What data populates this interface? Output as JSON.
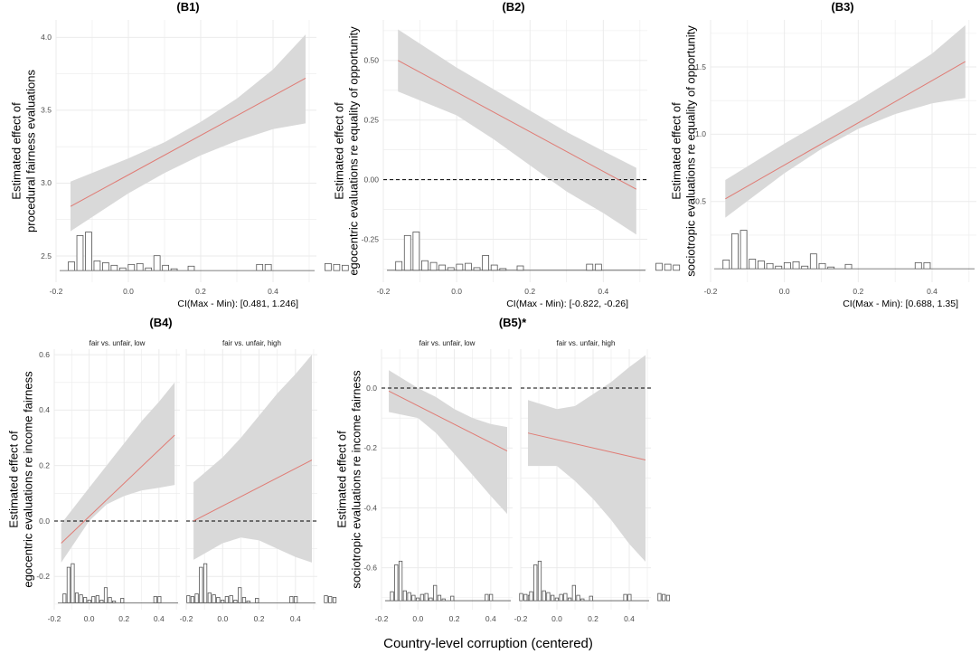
{
  "chart_data": {
    "type": "line",
    "xlabel": "Country-level corruption (centered)",
    "histogram_bins": [
      {
        "x": -0.18,
        "h": 1
      },
      {
        "x": -0.155,
        "h": 4
      },
      {
        "x": -0.13,
        "h": 4.4
      },
      {
        "x": -0.105,
        "h": 1.1
      },
      {
        "x": -0.08,
        "h": 0.9
      },
      {
        "x": -0.055,
        "h": 0.6
      },
      {
        "x": -0.03,
        "h": 0.3
      },
      {
        "x": -0.005,
        "h": 0.7
      },
      {
        "x": 0.02,
        "h": 0.8
      },
      {
        "x": 0.045,
        "h": 0.3
      },
      {
        "x": 0.07,
        "h": 1.7
      },
      {
        "x": 0.095,
        "h": 0.6
      },
      {
        "x": 0.12,
        "h": 0.2
      },
      {
        "x": 0.17,
        "h": 0.5
      },
      {
        "x": 0.37,
        "h": 0.7
      },
      {
        "x": 0.395,
        "h": 0.7
      },
      {
        "x": 0.57,
        "h": 0.8
      },
      {
        "x": 0.595,
        "h": 0.7
      },
      {
        "x": 0.62,
        "h": 0.6
      }
    ],
    "panels": [
      {
        "id": "B1",
        "title": "(B1)",
        "ylabel": [
          "Estimated effect of",
          "procedural fairness evaluations"
        ],
        "xlim": [
          -0.2,
          0.52
        ],
        "ylim": [
          2.32,
          4.12
        ],
        "xticks": [
          {
            "v": -0.2,
            "t": "-0.2"
          },
          {
            "v": 0.0,
            "t": "0.0"
          },
          {
            "v": 0.2,
            "t": "0.2"
          },
          {
            "v": 0.4,
            "t": "0.4"
          }
        ],
        "yticks": [
          {
            "v": 2.5,
            "t": "2.5"
          },
          {
            "v": 3.0,
            "t": "3.0"
          },
          {
            "v": 3.5,
            "t": "3.5"
          },
          {
            "v": 4.0,
            "t": "4.0"
          }
        ],
        "ci_text": "CI(Max - Min): [0.481, 1.246]",
        "hist_base": 2.4,
        "hist_unit": 0.06,
        "hist_xmin": -0.2,
        "hist_xmax": 0.5,
        "facets": [
          {
            "strip": "",
            "line": [
              [
                -0.16,
                2.84
              ],
              [
                0.49,
                3.72
              ]
            ],
            "band_upper": [
              [
                -0.16,
                3.01
              ],
              [
                0.0,
                3.17
              ],
              [
                0.1,
                3.28
              ],
              [
                0.2,
                3.42
              ],
              [
                0.3,
                3.58
              ],
              [
                0.4,
                3.78
              ],
              [
                0.49,
                4.02
              ]
            ],
            "band_lower": [
              [
                -0.16,
                2.67
              ],
              [
                0.0,
                2.93
              ],
              [
                0.1,
                3.07
              ],
              [
                0.2,
                3.19
              ],
              [
                0.3,
                3.29
              ],
              [
                0.4,
                3.37
              ],
              [
                0.49,
                3.41
              ]
            ]
          }
        ]
      },
      {
        "id": "B2",
        "title": "(B2)",
        "ylabel": [
          "Estimated effect of",
          "egocentric evaluations re equality of opportunity"
        ],
        "xlim": [
          -0.2,
          0.52
        ],
        "ylim": [
          -0.43,
          0.67
        ],
        "xticks": [
          {
            "v": -0.2,
            "t": "-0.2"
          },
          {
            "v": 0.0,
            "t": "0.0"
          },
          {
            "v": 0.2,
            "t": "0.2"
          },
          {
            "v": 0.4,
            "t": "0.4"
          }
        ],
        "yticks": [
          {
            "v": -0.25,
            "t": "-0.25"
          },
          {
            "v": 0.0,
            "t": "0.00"
          },
          {
            "v": 0.25,
            "t": "0.25"
          },
          {
            "v": 0.5,
            "t": "0.50"
          }
        ],
        "hline": 0.0,
        "ci_text": "CI(Max - Min): [-0.822, -0.26]",
        "hist_base": -0.38,
        "hist_unit": 0.0365,
        "hist_xmin": -0.2,
        "hist_xmax": 0.5,
        "facets": [
          {
            "strip": "",
            "line": [
              [
                -0.16,
                0.5
              ],
              [
                0.49,
                -0.04
              ]
            ],
            "band_upper": [
              [
                -0.16,
                0.63
              ],
              [
                0.0,
                0.47
              ],
              [
                0.1,
                0.38
              ],
              [
                0.2,
                0.29
              ],
              [
                0.3,
                0.2
              ],
              [
                0.4,
                0.12
              ],
              [
                0.49,
                0.05
              ]
            ],
            "band_lower": [
              [
                -0.16,
                0.37
              ],
              [
                0.0,
                0.27
              ],
              [
                0.1,
                0.17
              ],
              [
                0.2,
                0.06
              ],
              [
                0.3,
                -0.05
              ],
              [
                0.4,
                -0.14
              ],
              [
                0.49,
                -0.23
              ]
            ]
          }
        ]
      },
      {
        "id": "B3",
        "title": "(B3)",
        "ylabel": [
          "Estimated effect of",
          "sociotropic evaluations re equality of opportunity"
        ],
        "xlim": [
          -0.2,
          0.52
        ],
        "ylim": [
          -0.1,
          1.85
        ],
        "xticks": [
          {
            "v": -0.2,
            "t": "-0.2"
          },
          {
            "v": 0.0,
            "t": "0.0"
          },
          {
            "v": 0.2,
            "t": "0.2"
          },
          {
            "v": 0.4,
            "t": "0.4"
          }
        ],
        "yticks": [
          {
            "v": 0.5,
            "t": "0.5"
          },
          {
            "v": 1.0,
            "t": "1.0"
          },
          {
            "v": 1.5,
            "t": "1.5"
          }
        ],
        "ci_text": "CI(Max - Min): [0.688, 1.35]",
        "hist_base": 0.0,
        "hist_unit": 0.065,
        "hist_xmin": -0.2,
        "hist_xmax": 0.5,
        "facets": [
          {
            "strip": "",
            "line": [
              [
                -0.16,
                0.52
              ],
              [
                0.49,
                1.54
              ]
            ],
            "band_upper": [
              [
                -0.16,
                0.66
              ],
              [
                0.0,
                0.93
              ],
              [
                0.1,
                1.09
              ],
              [
                0.2,
                1.25
              ],
              [
                0.3,
                1.42
              ],
              [
                0.4,
                1.6
              ],
              [
                0.49,
                1.81
              ]
            ],
            "band_lower": [
              [
                -0.16,
                0.38
              ],
              [
                0.0,
                0.71
              ],
              [
                0.1,
                0.89
              ],
              [
                0.2,
                1.04
              ],
              [
                0.3,
                1.15
              ],
              [
                0.4,
                1.23
              ],
              [
                0.49,
                1.27
              ]
            ]
          }
        ]
      },
      {
        "id": "B4",
        "title": "(B4)",
        "ylabel": [
          "Estimated effect of",
          "egocentric evaluations re income fairness"
        ],
        "xlim": [
          -0.2,
          0.52
        ],
        "ylim": [
          -0.32,
          0.62
        ],
        "xticks": [
          {
            "v": -0.2,
            "t": "-0.2"
          },
          {
            "v": 0.0,
            "t": "0.0"
          },
          {
            "v": 0.2,
            "t": "0.2"
          },
          {
            "v": 0.4,
            "t": "0.4"
          }
        ],
        "yticks": [
          {
            "v": -0.2,
            "t": "-0.2"
          },
          {
            "v": 0.0,
            "t": "0.0"
          },
          {
            "v": 0.2,
            "t": "0.2"
          },
          {
            "v": 0.4,
            "t": "0.4"
          },
          {
            "v": 0.6,
            "t": "0.6"
          }
        ],
        "hline": 0.0,
        "hist_base": -0.295,
        "hist_unit": 0.032,
        "hist_xmin": -0.2,
        "hist_xmax": 0.52,
        "facets": [
          {
            "strip": "fair vs. unfair, low",
            "line": [
              [
                -0.16,
                -0.08
              ],
              [
                0.49,
                0.31
              ]
            ],
            "band_upper": [
              [
                -0.16,
                -0.01
              ],
              [
                0.0,
                0.12
              ],
              [
                0.1,
                0.2
              ],
              [
                0.2,
                0.28
              ],
              [
                0.3,
                0.36
              ],
              [
                0.4,
                0.43
              ],
              [
                0.49,
                0.5
              ]
            ],
            "band_lower": [
              [
                -0.16,
                -0.15
              ],
              [
                0.0,
                0.0
              ],
              [
                0.1,
                0.06
              ],
              [
                0.2,
                0.09
              ],
              [
                0.3,
                0.11
              ],
              [
                0.4,
                0.12
              ],
              [
                0.49,
                0.13
              ]
            ]
          },
          {
            "strip": "fair vs. unfair, high",
            "line": [
              [
                -0.16,
                0.0
              ],
              [
                0.49,
                0.22
              ]
            ],
            "band_upper": [
              [
                -0.16,
                0.14
              ],
              [
                0.0,
                0.23
              ],
              [
                0.1,
                0.3
              ],
              [
                0.2,
                0.38
              ],
              [
                0.3,
                0.46
              ],
              [
                0.4,
                0.53
              ],
              [
                0.49,
                0.6
              ]
            ],
            "band_lower": [
              [
                -0.16,
                -0.14
              ],
              [
                0.0,
                -0.08
              ],
              [
                0.1,
                -0.06
              ],
              [
                0.2,
                -0.07
              ],
              [
                0.3,
                -0.1
              ],
              [
                0.4,
                -0.13
              ],
              [
                0.49,
                -0.15
              ]
            ]
          }
        ]
      },
      {
        "id": "B5",
        "title": "(B5)*",
        "ylabel": [
          "Estimated effect of",
          "sociotropic evaluations re income fairness"
        ],
        "xlim": [
          -0.2,
          0.52
        ],
        "ylim": [
          -0.74,
          0.13
        ],
        "xticks": [
          {
            "v": -0.2,
            "t": "-0.2"
          },
          {
            "v": 0.0,
            "t": "0.0"
          },
          {
            "v": 0.2,
            "t": "0.2"
          },
          {
            "v": 0.4,
            "t": "0.4"
          }
        ],
        "yticks": [
          {
            "v": -0.6,
            "t": "-0.6"
          },
          {
            "v": -0.4,
            "t": "-0.4"
          },
          {
            "v": -0.2,
            "t": "-0.2"
          },
          {
            "v": 0.0,
            "t": "0.0"
          }
        ],
        "hline": 0.0,
        "hist_base": -0.71,
        "hist_unit": 0.03,
        "hist_xmin": -0.2,
        "hist_xmax": 0.52,
        "facets": [
          {
            "strip": "fair vs. unfair, low",
            "line": [
              [
                -0.16,
                -0.01
              ],
              [
                0.49,
                -0.21
              ]
            ],
            "band_upper": [
              [
                -0.16,
                0.06
              ],
              [
                0.0,
                0.0
              ],
              [
                0.1,
                -0.03
              ],
              [
                0.2,
                -0.07
              ],
              [
                0.3,
                -0.1
              ],
              [
                0.4,
                -0.12
              ],
              [
                0.49,
                -0.13
              ]
            ],
            "band_lower": [
              [
                -0.16,
                -0.08
              ],
              [
                0.0,
                -0.1
              ],
              [
                0.1,
                -0.15
              ],
              [
                0.2,
                -0.22
              ],
              [
                0.3,
                -0.29
              ],
              [
                0.4,
                -0.36
              ],
              [
                0.49,
                -0.42
              ]
            ]
          },
          {
            "strip": "fair vs. unfair, high",
            "line": [
              [
                -0.16,
                -0.15
              ],
              [
                0.49,
                -0.24
              ]
            ],
            "band_upper": [
              [
                -0.16,
                -0.04
              ],
              [
                0.0,
                -0.07
              ],
              [
                0.1,
                -0.06
              ],
              [
                0.2,
                -0.02
              ],
              [
                0.3,
                0.02
              ],
              [
                0.4,
                0.07
              ],
              [
                0.49,
                0.11
              ]
            ],
            "band_lower": [
              [
                -0.16,
                -0.26
              ],
              [
                0.0,
                -0.26
              ],
              [
                0.1,
                -0.31
              ],
              [
                0.2,
                -0.37
              ],
              [
                0.3,
                -0.44
              ],
              [
                0.4,
                -0.52
              ],
              [
                0.49,
                -0.58
              ]
            ]
          }
        ]
      }
    ]
  },
  "colors": {
    "band": "#d9d9d9",
    "line": "#e07b74",
    "grid": "#ebebeb",
    "hist_stroke": "#555555",
    "axis_text": "#4d4d4d"
  }
}
